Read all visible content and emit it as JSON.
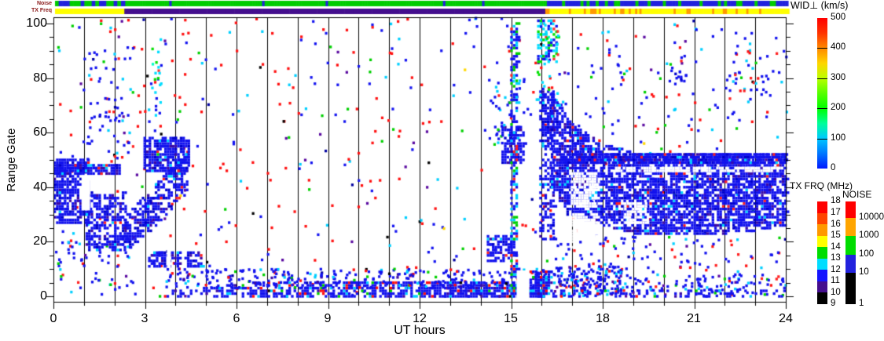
{
  "strip_labels": {
    "noise": "Noise",
    "txfreq": "TX Freq"
  },
  "axes": {
    "xlabel": "UT hours",
    "ylabel": "Range Gate",
    "x_ticks": [
      "0",
      "3",
      "6",
      "9",
      "12",
      "15",
      "18",
      "21",
      "24"
    ],
    "y_ticks": [
      "100",
      "80",
      "60",
      "40",
      "20",
      "0"
    ]
  },
  "colorbars": {
    "wid": {
      "title": "WID⊥ (km/s)",
      "range": [
        0,
        500
      ],
      "tick_labels": [
        "500",
        "400",
        "300",
        "200",
        "100",
        "0"
      ],
      "gradient_bottom_to_top": [
        "#0018FF",
        "#0077FF",
        "#00C8FF",
        "#00FF99",
        "#00FF00",
        "#55FF00",
        "#BBFF00",
        "#FFD500",
        "#FF8800",
        "#FF3300",
        "#FF0000"
      ]
    },
    "txfrq": {
      "title": "TX FRQ (MHz)",
      "range": [
        9,
        18
      ],
      "tick_labels": [
        "18",
        "17",
        "16",
        "15",
        "14",
        "13",
        "12",
        "11",
        "10",
        "9"
      ],
      "segments_top_to_bottom": [
        "#FF0000",
        "#FF4400",
        "#FF9900",
        "#FFFF00",
        "#00DD00",
        "#00DDFF",
        "#1414FF",
        "#440E8E",
        "#000000"
      ]
    },
    "noise": {
      "title": "NOISE",
      "tick_labels": [
        "10000",
        "1000",
        "100",
        "10",
        "1"
      ],
      "segments_top_to_bottom": [
        "#FF0000",
        "#FFA500",
        "#00DD00",
        "#2222DD",
        "#000000"
      ],
      "segment_heights": [
        21,
        23,
        24,
        23,
        40
      ]
    }
  },
  "chart_data": {
    "type": "scatter",
    "title": "",
    "xlabel": "UT hours",
    "ylabel": "Range Gate",
    "xlim": [
      0,
      24
    ],
    "ylim": [
      -2,
      102
    ],
    "x_tick_values": [
      0,
      3,
      6,
      9,
      12,
      15,
      18,
      21,
      24
    ],
    "y_tick_values": [
      0,
      20,
      40,
      60,
      80,
      100
    ],
    "x_minor_step": 1,
    "y_minor_step": 5,
    "gridlines": "vertical black line every 1 hour",
    "value_colorbar": "WID⊥ (km/s) rainbow 0=blue to 500=red; most echoes near 0 (blue)",
    "seed": 1234,
    "palettes": {
      "bg": [
        [
          "#FF1010",
          38
        ],
        [
          "#1414F0",
          30
        ],
        [
          "#00CFFF",
          12
        ],
        [
          "#00D000",
          7
        ],
        [
          "#5A0AA0",
          6
        ],
        [
          "#0000A0",
          4
        ],
        [
          "#000000",
          2
        ],
        [
          "#FFD800",
          1
        ]
      ],
      "dense": [
        [
          "#1212EE",
          78
        ],
        [
          "#0000CC",
          10
        ],
        [
          "#3A0AA6",
          7
        ],
        [
          "#00CFFF",
          3
        ],
        [
          "#FF2020",
          2
        ]
      ],
      "band": [
        [
          "#1212EE",
          76
        ],
        [
          "#00CFFF",
          8
        ],
        [
          "#FF1010",
          8
        ],
        [
          "#00D000",
          3
        ],
        [
          "#3A0AA6",
          4
        ],
        [
          "#000000",
          1
        ]
      ],
      "streak": [
        [
          "#1212EE",
          55
        ],
        [
          "#00CFFF",
          28
        ],
        [
          "#00D000",
          10
        ],
        [
          "#FF2020",
          7
        ]
      ],
      "cyan": [
        [
          "#00DDFF",
          42
        ],
        [
          "#1212EE",
          30
        ],
        [
          "#00E000",
          18
        ],
        [
          "#FF3030",
          5
        ],
        [
          "#00FFC8",
          5
        ]
      ],
      "bluesp": [
        [
          "#1212EE",
          70
        ],
        [
          "#00CFFF",
          12
        ],
        [
          "#FF2020",
          8
        ],
        [
          "#00D000",
          5
        ],
        [
          "#5A0AA0",
          5
        ]
      ],
      "white": [
        [
          "#FFFFFF",
          1
        ]
      ]
    },
    "features": [
      {
        "kind": "scatter",
        "h": [
          0,
          24
        ],
        "g": [
          0,
          102
        ],
        "n": 560,
        "pal": "bg"
      },
      {
        "kind": "scatter",
        "h": [
          0,
          2.6
        ],
        "g": [
          3,
          20
        ],
        "n": 50,
        "pal": "bluesp"
      },
      {
        "kind": "scatter",
        "h": [
          0.85,
          2.6
        ],
        "g": [
          50,
          92
        ],
        "n": 70,
        "pal": "bluesp"
      },
      {
        "kind": "fill",
        "h": [
          0,
          1.12
        ],
        "gtop": 50,
        "gbot": 27,
        "density": 0.72,
        "pal": "dense"
      },
      {
        "kind": "fill",
        "h": [
          1.05,
          2.35
        ],
        "gtop": 38,
        "gbot": 17,
        "density": 0.55,
        "pal": "dense"
      },
      {
        "kind": "erase",
        "h": [
          0.92,
          1.2
        ],
        "g": [
          32,
          44.5
        ]
      },
      {
        "kind": "fill",
        "h": [
          0,
          2.2
        ],
        "gtop": 48.5,
        "gbot": 45,
        "density": 0.85,
        "pal": "dense"
      },
      {
        "kind": "fill",
        "h": [
          2.3,
          4.35
        ],
        "top_pts": [
          [
            2.3,
            30
          ],
          [
            3.2,
            40
          ],
          [
            4.35,
            53
          ]
        ],
        "bot_pts": [
          [
            2.3,
            16
          ],
          [
            3.2,
            24
          ],
          [
            4.35,
            38
          ]
        ],
        "density": 0.6,
        "pal": "dense"
      },
      {
        "kind": "fill",
        "h": [
          2.95,
          4.4
        ],
        "gtop": 58,
        "gbot": 46,
        "density": 0.75,
        "pal": "dense"
      },
      {
        "kind": "scatter",
        "h": [
          3.2,
          3.5
        ],
        "g": [
          50,
          96
        ],
        "n": 26,
        "pal": "cyan"
      },
      {
        "kind": "fill",
        "h": [
          3.1,
          4.85
        ],
        "gtop": 16.5,
        "gbot": 11,
        "density": 0.68,
        "pal": "dense"
      },
      {
        "kind": "erase",
        "h": [
          3.72,
          3.85
        ],
        "g": [
          10,
          17
        ]
      },
      {
        "kind": "fill",
        "h": [
          3.45,
          16.2
        ],
        "top_pts": [
          [
            3.45,
            2
          ],
          [
            5,
            3.5
          ],
          [
            6.5,
            5
          ],
          [
            16.2,
            5.5
          ]
        ],
        "gbot": -0.5,
        "density": 0.8,
        "ramp": [
          0.35,
          0.85
        ],
        "pal": "band"
      },
      {
        "kind": "scatter",
        "h": [
          3.6,
          16.2
        ],
        "g": [
          3,
          10
        ],
        "n": 290,
        "pal": "band"
      },
      {
        "kind": "fill",
        "h": [
          14.2,
          15.05
        ],
        "gtop": 22,
        "gbot": 12.5,
        "density": 0.6,
        "pal": "dense"
      },
      {
        "kind": "fill",
        "h": [
          14.68,
          15.38
        ],
        "gtop": 62,
        "gbot": 49,
        "density": 0.55,
        "pal": "dense"
      },
      {
        "kind": "scatter",
        "h": [
          14.2,
          15.4
        ],
        "g": [
          55,
          80
        ],
        "n": 40,
        "pal": "streak"
      },
      {
        "kind": "fill",
        "h": [
          14.97,
          15.16
        ],
        "gtop": 101,
        "gbot": 0,
        "density": 0.5,
        "pal": "streak"
      },
      {
        "kind": "erase",
        "h": [
          15.18,
          15.6
        ],
        "g": [
          -1,
          9
        ]
      },
      {
        "kind": "fill",
        "h": [
          15.6,
          16.35
        ],
        "gtop": 9,
        "gbot": -0.5,
        "density": 0.6,
        "pal": "band"
      },
      {
        "kind": "fill",
        "h": [
          15.92,
          16.38
        ],
        "gtop": 76,
        "gbot": 20,
        "density": 0.42,
        "pal": "dense"
      },
      {
        "kind": "fill",
        "h": [
          16.0,
          16.33
        ],
        "gtop": 72,
        "gbot": 55,
        "density": 0.6,
        "pal": "dense"
      },
      {
        "kind": "fill",
        "h": [
          15.85,
          16.5
        ],
        "gtop": 101,
        "gbot": 86,
        "density": 0.55,
        "pal": "cyan"
      },
      {
        "kind": "scatter",
        "h": [
          15.8,
          16.6
        ],
        "g": [
          70,
          101
        ],
        "n": 30,
        "pal": "cyan"
      },
      {
        "kind": "fill",
        "h": [
          16.3,
          24
        ],
        "top_pts": [
          [
            16.3,
            74
          ],
          [
            17,
            63
          ],
          [
            18,
            56
          ],
          [
            19,
            53
          ],
          [
            24,
            52
          ]
        ],
        "bot_pts": [
          [
            16.3,
            40
          ],
          [
            16.8,
            30
          ],
          [
            18,
            26
          ],
          [
            19,
            23
          ],
          [
            21,
            22
          ],
          [
            23,
            24
          ],
          [
            24,
            26
          ]
        ],
        "density": 0.72,
        "pal": "dense"
      },
      {
        "kind": "fill",
        "h": [
          16.95,
          17.75
        ],
        "gtop": 45,
        "gbot": 33,
        "density": 0.85,
        "pal": "white"
      },
      {
        "kind": "fill",
        "h": [
          17.0,
          17.8
        ],
        "gtop": 30,
        "gbot": 18,
        "density": 0.85,
        "pal": "white"
      },
      {
        "kind": "fill",
        "h": [
          18.7,
          19.4
        ],
        "gtop": 34,
        "gbot": 27,
        "density": 0.6,
        "pal": "white"
      },
      {
        "kind": "fill",
        "h": [
          18.4,
          24
        ],
        "gtop": 47.5,
        "gbot": 45.5,
        "density": 0.7,
        "pal": "white"
      },
      {
        "kind": "fill",
        "h": [
          16.6,
          24
        ],
        "gtop": 52,
        "gbot": 48.5,
        "density": 0.8,
        "pal": "dense"
      },
      {
        "kind": "scatter",
        "h": [
          16.35,
          18.6
        ],
        "g": [
          0,
          11
        ],
        "n": 170,
        "pal": "bluesp"
      },
      {
        "kind": "scatter",
        "h": [
          18.6,
          24
        ],
        "g": [
          0,
          8
        ],
        "n": 110,
        "pal": "bluesp"
      },
      {
        "kind": "fill",
        "h": [
          16.35,
          24
        ],
        "gtop": 2,
        "gbot": -0.5,
        "density": 0.3,
        "pal": "band"
      },
      {
        "kind": "scatter",
        "h": [
          16.3,
          24
        ],
        "g": [
          8,
          22
        ],
        "n": 70,
        "pal": "bluesp"
      },
      {
        "kind": "scatter",
        "h": [
          17,
          24
        ],
        "g": [
          60,
          101
        ],
        "n": 60,
        "pal": "bluesp"
      },
      {
        "kind": "scatter",
        "h": [
          20.15,
          20.7
        ],
        "g": [
          76,
          84
        ],
        "n": 14,
        "pal": "dense"
      },
      {
        "kind": "scatter",
        "h": [
          22.2,
          23.4
        ],
        "g": [
          74,
          90
        ],
        "n": 22,
        "pal": "bluesp"
      }
    ],
    "strips": {
      "noise": {
        "y": 1,
        "regions": [
          {
            "h": [
              0,
              2.3
            ],
            "base": "#2121DD",
            "chunk": 0.12,
            "flecks": [
              [
                "#00CC00",
                0.42
              ]
            ]
          },
          {
            "h": [
              2.3,
              16.1
            ],
            "base": "#00CC00",
            "chunk": 0.08,
            "flecks": [
              [
                "#2121DD",
                0.04
              ],
              [
                "#FF9900",
                0.012
              ]
            ]
          },
          {
            "h": [
              16.1,
              24
            ],
            "base": "#2121DD",
            "chunk": 0.1,
            "flecks": [
              [
                "#00CC00",
                0.3
              ]
            ]
          }
        ]
      },
      "txfreq": {
        "y": 11,
        "regions": [
          {
            "h": [
              0,
              2.27
            ],
            "base": "#FFFF00",
            "chunk": 0.3,
            "flecks": []
          },
          {
            "h": [
              2.27,
              16.05
            ],
            "base": "#440E8E",
            "chunk": 0.3,
            "flecks": []
          },
          {
            "h": [
              16.05,
              24
            ],
            "base": "#FFFF00",
            "chunk": 0.07,
            "flecks": [
              [
                "#FF9900",
                0.22
              ]
            ]
          }
        ]
      }
    }
  }
}
